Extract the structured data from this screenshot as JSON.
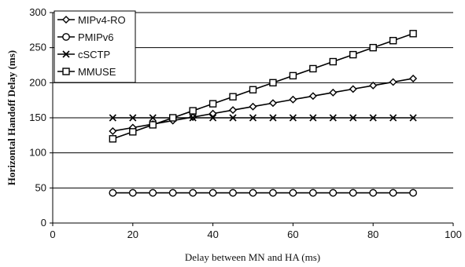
{
  "chart_data": {
    "type": "line",
    "xlabel": "Delay between MN and HA (ms)",
    "ylabel": "Horizontal Handoff Delay  (ms)",
    "xlim": [
      0,
      100
    ],
    "ylim": [
      0,
      300
    ],
    "xticks": [
      0,
      20,
      40,
      60,
      80,
      100
    ],
    "yticks": [
      0,
      50,
      100,
      150,
      200,
      250,
      300
    ],
    "grid": "horizontal",
    "legend_position": "top-left",
    "x": [
      15,
      20,
      25,
      30,
      35,
      40,
      45,
      50,
      55,
      60,
      65,
      70,
      75,
      80,
      85,
      90
    ],
    "series": [
      {
        "name": "MIPv4-RO",
        "marker": "diamond",
        "values": [
          131,
          136,
          141,
          146,
          151,
          156,
          161,
          166,
          171,
          176,
          181,
          186,
          191,
          196,
          201,
          206
        ]
      },
      {
        "name": "PMIPv6",
        "marker": "circle",
        "values": [
          43,
          43,
          43,
          43,
          43,
          43,
          43,
          43,
          43,
          43,
          43,
          43,
          43,
          43,
          43,
          43
        ]
      },
      {
        "name": "cSCTP",
        "marker": "x",
        "values": [
          150,
          150,
          150,
          150,
          150,
          150,
          150,
          150,
          150,
          150,
          150,
          150,
          150,
          150,
          150,
          150
        ]
      },
      {
        "name": "MMUSE",
        "marker": "square",
        "values": [
          120,
          130,
          140,
          150,
          160,
          170,
          180,
          190,
          200,
          210,
          220,
          230,
          240,
          250,
          260,
          270
        ]
      }
    ]
  }
}
